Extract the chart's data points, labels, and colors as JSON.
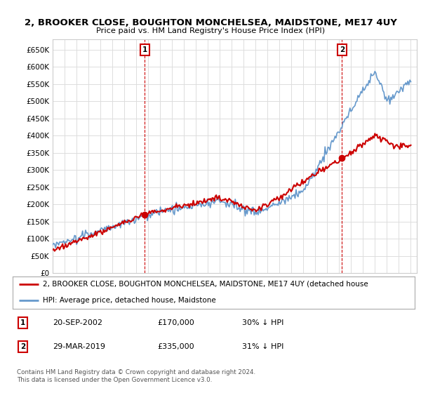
{
  "title": "2, BROOKER CLOSE, BOUGHTON MONCHELSEA, MAIDSTONE, ME17 4UY",
  "subtitle": "Price paid vs. HM Land Registry's House Price Index (HPI)",
  "ylim": [
    0,
    680000
  ],
  "yticks": [
    0,
    50000,
    100000,
    150000,
    200000,
    250000,
    300000,
    350000,
    400000,
    450000,
    500000,
    550000,
    600000,
    650000
  ],
  "background_color": "#ffffff",
  "plot_bg_color": "#ffffff",
  "grid_color": "#dddddd",
  "hpi_color": "#6699cc",
  "price_color": "#cc0000",
  "sale1_x": 2002.72,
  "sale1_y": 170000,
  "sale2_x": 2019.24,
  "sale2_y": 335000,
  "legend_property": "2, BROOKER CLOSE, BOUGHTON MONCHELSEA, MAIDSTONE, ME17 4UY (detached house",
  "legend_hpi": "HPI: Average price, detached house, Maidstone",
  "table_rows": [
    {
      "num": "1",
      "date": "20-SEP-2002",
      "price": "£170,000",
      "pct": "30% ↓ HPI"
    },
    {
      "num": "2",
      "date": "29-MAR-2019",
      "price": "£335,000",
      "pct": "31% ↓ HPI"
    }
  ],
  "footnote1": "Contains HM Land Registry data © Crown copyright and database right 2024.",
  "footnote2": "This data is licensed under the Open Government Licence v3.0.",
  "xmin": 1995,
  "xmax": 2025.5
}
